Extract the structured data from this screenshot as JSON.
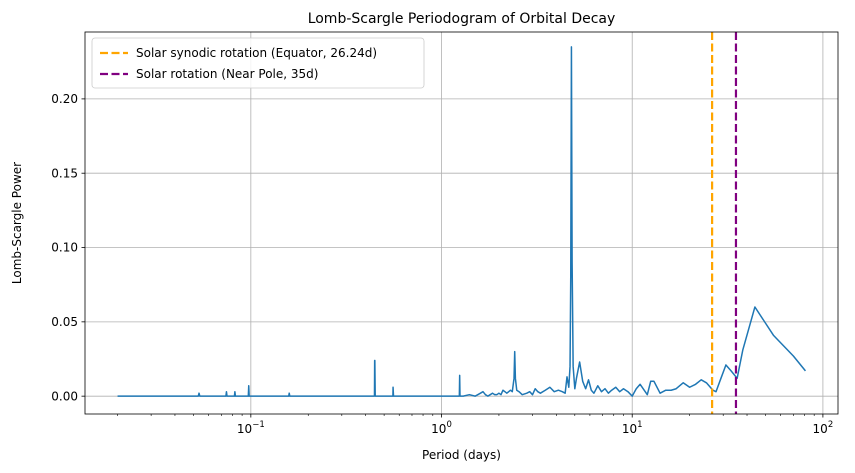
{
  "chart_data": {
    "type": "line",
    "title": "Lomb-Scargle Periodogram of Orbital Decay",
    "xlabel": "Period (days)",
    "ylabel": "Lomb-Scargle Power",
    "xscale": "log",
    "xlim": [
      0.0135,
      120
    ],
    "ylim": [
      -0.012,
      0.245
    ],
    "xticks": [
      {
        "value": 0.1,
        "base": "10",
        "exp": "−1"
      },
      {
        "value": 1,
        "base": "10",
        "exp": "0"
      },
      {
        "value": 10,
        "base": "10",
        "exp": "1"
      },
      {
        "value": 100,
        "base": "10",
        "exp": "2"
      }
    ],
    "yticks": [
      {
        "value": 0.0,
        "label": "0.00"
      },
      {
        "value": 0.05,
        "label": "0.05"
      },
      {
        "value": 0.1,
        "label": "0.10"
      },
      {
        "value": 0.15,
        "label": "0.15"
      },
      {
        "value": 0.2,
        "label": "0.20"
      }
    ],
    "grid": true,
    "legend_position": "top-left",
    "series": [
      {
        "color": "#1f77b4",
        "x": [
          0.02,
          0.025,
          0.03,
          0.04,
          0.05,
          0.053,
          0.0535,
          0.054,
          0.06,
          0.07,
          0.074,
          0.0745,
          0.075,
          0.08,
          0.082,
          0.0825,
          0.083,
          0.09,
          0.097,
          0.0975,
          0.098,
          0.12,
          0.15,
          0.158,
          0.159,
          0.16,
          0.2,
          0.25,
          0.3,
          0.35,
          0.4,
          0.445,
          0.446,
          0.447,
          0.449,
          0.5,
          0.55,
          0.556,
          0.557,
          0.56,
          0.6,
          0.8,
          1.0,
          1.2,
          1.24,
          1.245,
          1.25,
          1.3,
          1.4,
          1.5,
          1.6,
          1.65,
          1.7,
          1.75,
          1.8,
          1.85,
          1.9,
          1.95,
          2.0,
          2.05,
          2.1,
          2.15,
          2.2,
          2.25,
          2.3,
          2.35,
          2.4,
          2.42,
          2.44,
          2.48,
          2.55,
          2.65,
          2.8,
          2.9,
          3.0,
          3.1,
          3.2,
          3.3,
          3.5,
          3.7,
          3.9,
          4.1,
          4.3,
          4.45,
          4.55,
          4.65,
          4.72,
          4.76,
          4.8,
          4.84,
          4.9,
          5.0,
          5.1,
          5.3,
          5.5,
          5.7,
          5.9,
          6.1,
          6.3,
          6.6,
          6.9,
          7.2,
          7.5,
          7.8,
          8.2,
          8.6,
          9.0,
          9.5,
          10.0,
          10.5,
          11.0,
          12.0,
          12.5,
          13.0,
          14.0,
          15.0,
          16.0,
          17.0,
          18.5,
          20.0,
          21.5,
          23.0,
          24.5,
          26.5,
          27.5,
          29.0,
          31.0,
          33.0,
          35.5,
          38.0,
          44.0,
          55.0,
          70.0,
          81.0
        ],
        "y": [
          0.0,
          0.0,
          0.0,
          0.0,
          0.0,
          0.0,
          0.002,
          0.0,
          0.0,
          0.0,
          0.0,
          0.003,
          0.0,
          0.0,
          0.0,
          0.003,
          0.0,
          0.0,
          0.0,
          0.007,
          0.0,
          0.0,
          0.0,
          0.0,
          0.002,
          0.0,
          0.0,
          0.0,
          0.0,
          0.0,
          0.0,
          0.0,
          0.024,
          0.024,
          0.0,
          0.0,
          0.0,
          0.0,
          0.006,
          0.0,
          0.0,
          0.0,
          0.0,
          0.0,
          0.0,
          0.014,
          0.0,
          0.0,
          0.001,
          0.0,
          0.002,
          0.003,
          0.001,
          0.0,
          0.001,
          0.002,
          0.001,
          0.001,
          0.002,
          0.001,
          0.004,
          0.003,
          0.002,
          0.003,
          0.004,
          0.003,
          0.012,
          0.03,
          0.012,
          0.004,
          0.003,
          0.001,
          0.002,
          0.003,
          0.001,
          0.005,
          0.003,
          0.002,
          0.004,
          0.006,
          0.003,
          0.004,
          0.003,
          0.002,
          0.013,
          0.006,
          0.02,
          0.08,
          0.235,
          0.09,
          0.02,
          0.005,
          0.012,
          0.023,
          0.01,
          0.005,
          0.011,
          0.004,
          0.002,
          0.007,
          0.003,
          0.005,
          0.002,
          0.004,
          0.006,
          0.003,
          0.005,
          0.003,
          0.0,
          0.005,
          0.008,
          0.001,
          0.01,
          0.01,
          0.002,
          0.004,
          0.004,
          0.005,
          0.009,
          0.006,
          0.008,
          0.011,
          0.009,
          0.004,
          0.003,
          0.011,
          0.021,
          0.017,
          0.012,
          0.031,
          0.06,
          0.041,
          0.027,
          0.017
        ]
      }
    ],
    "vlines": [
      {
        "x": 26.24,
        "color": "#ffa500",
        "label": "Solar synodic rotation (Equator, 26.24d)"
      },
      {
        "x": 35,
        "color": "#800080",
        "label": "Solar rotation (Near Pole, 35d)"
      }
    ]
  }
}
